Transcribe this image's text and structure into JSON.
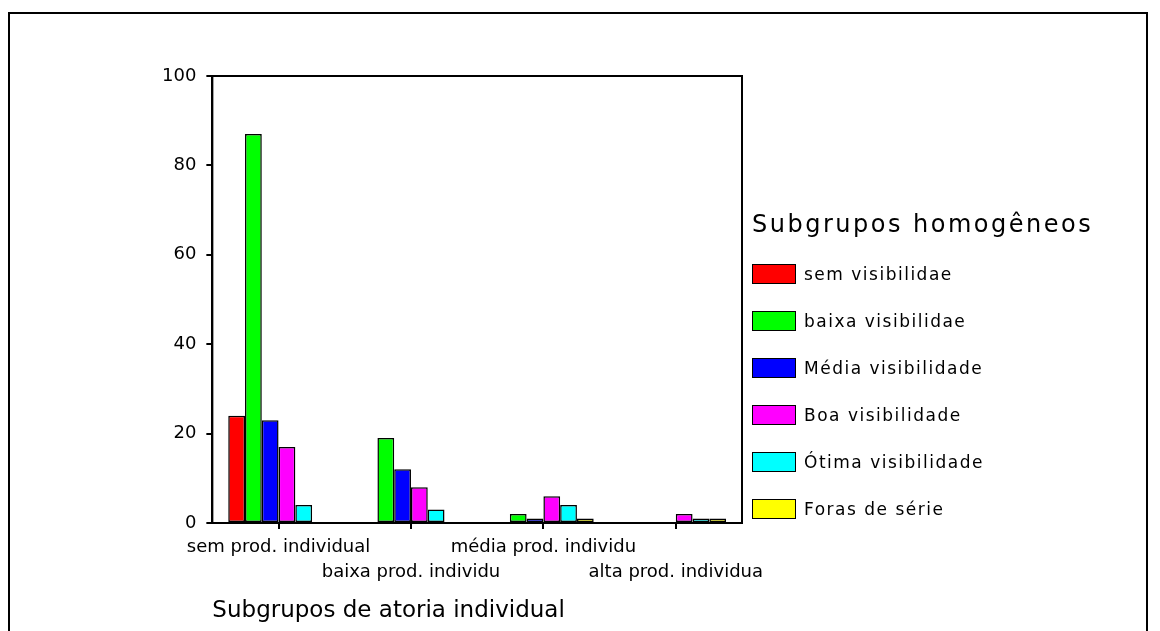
{
  "chart_data": {
    "type": "bar",
    "xlabel": "Subgrupos de atoria individual",
    "legend_title": "Subgrupos homogêneos",
    "legend": "right",
    "categories": [
      "sem prod. individual",
      "baixa prod. individu",
      "média prod. individu",
      "alta prod. individua"
    ],
    "series": [
      {
        "name": "sem visibilidae",
        "color": "#ff0000",
        "values": [
          24,
          null,
          null,
          null
        ]
      },
      {
        "name": "baixa visibilidae",
        "color": "#00ff00",
        "values": [
          87,
          19,
          2,
          null
        ]
      },
      {
        "name": "Média visibilidade",
        "color": "#0000ff",
        "values": [
          23,
          12,
          1,
          null
        ]
      },
      {
        "name": "Boa visibilidade",
        "color": "#ff00ff",
        "values": [
          17,
          8,
          6,
          2
        ]
      },
      {
        "name": "Ótima visibilidade",
        "color": "#00ffff",
        "values": [
          4,
          3,
          4,
          1
        ]
      },
      {
        "name": "Foras de série",
        "color": "#ffff00",
        "values": [
          null,
          null,
          1,
          1
        ]
      }
    ],
    "ylim": [
      0,
      100
    ],
    "yticks": [
      0,
      20,
      40,
      60,
      80,
      100
    ]
  }
}
